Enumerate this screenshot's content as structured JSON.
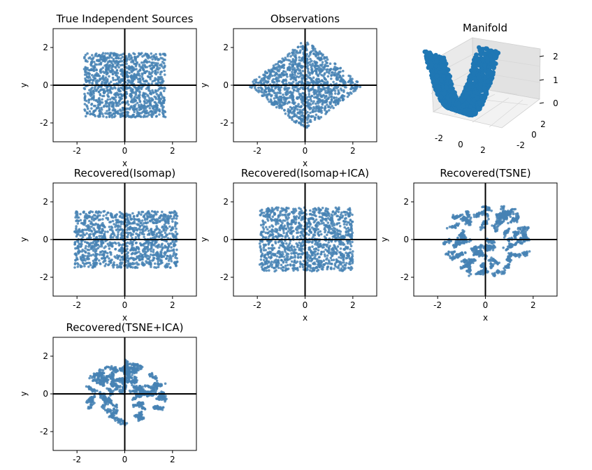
{
  "colors": {
    "point": "#4682b4",
    "point_3d": "#1f77b4",
    "axis_line": "#000000"
  },
  "chart_data": [
    {
      "type": "scatter",
      "title": "True Independent Sources",
      "xlabel": "x",
      "ylabel": "y",
      "xlim": [
        -3,
        3
      ],
      "ylim": [
        -3,
        3
      ],
      "xticks": [
        -2,
        0,
        2
      ],
      "yticks": [
        -2,
        0,
        2
      ],
      "zero_lines": true,
      "point_count": 1200,
      "distribution": {
        "shape": "rectangle",
        "x_range": [
          -1.7,
          1.7
        ],
        "y_range": [
          -1.7,
          1.7
        ]
      }
    },
    {
      "type": "scatter",
      "title": "Observations",
      "xlabel": "x",
      "ylabel": "y",
      "xlim": [
        -3,
        3
      ],
      "ylim": [
        -3,
        3
      ],
      "xticks": [
        -2,
        0,
        2
      ],
      "yticks": [
        -2,
        0,
        2
      ],
      "zero_lines": true,
      "point_count": 1200,
      "distribution": {
        "shape": "diamond",
        "x_range": [
          -2.4,
          2.4
        ],
        "y_range": [
          -2.4,
          2.4
        ]
      }
    },
    {
      "type": "scatter3d",
      "title": "Manifold",
      "xticks": [
        -2,
        0,
        2
      ],
      "yticks": [
        -2,
        0,
        2
      ],
      "zticks": [
        0,
        1,
        2
      ],
      "distribution": {
        "shape": "parabolic-sheet",
        "z_range": [
          0,
          2
        ]
      }
    },
    {
      "type": "scatter",
      "title": "Recovered(Isomap)",
      "xlabel": "x",
      "ylabel": "y",
      "xlim": [
        -3,
        3
      ],
      "ylim": [
        -3,
        3
      ],
      "xticks": [
        -2,
        0,
        2
      ],
      "yticks": [
        -2,
        0,
        2
      ],
      "zero_lines": true,
      "point_count": 1200,
      "distribution": {
        "shape": "rectangle",
        "x_range": [
          -2.1,
          2.2
        ],
        "y_range": [
          -1.5,
          1.5
        ]
      }
    },
    {
      "type": "scatter",
      "title": "Recovered(Isomap+ICA)",
      "xlabel": "x",
      "ylabel": "y",
      "xlim": [
        -3,
        3
      ],
      "ylim": [
        -3,
        3
      ],
      "xticks": [
        -2,
        0,
        2
      ],
      "yticks": [
        -2,
        0,
        2
      ],
      "zero_lines": true,
      "point_count": 1200,
      "distribution": {
        "shape": "rectangle",
        "x_range": [
          -1.9,
          2.0
        ],
        "y_range": [
          -1.7,
          1.7
        ]
      }
    },
    {
      "type": "scatter",
      "title": "Recovered(TSNE)",
      "xlabel": "x",
      "ylabel": "y",
      "xlim": [
        -3,
        3
      ],
      "ylim": [
        -3,
        3
      ],
      "xticks": [
        -2,
        0,
        2
      ],
      "yticks": [
        -2,
        0,
        2
      ],
      "zero_lines": true,
      "point_count": 1200,
      "distribution": {
        "shape": "clustered-disk",
        "center": [
          0,
          0
        ],
        "radius": 2.0
      }
    },
    {
      "type": "scatter",
      "title": "Recovered(TSNE+ICA)",
      "xlabel": "x",
      "ylabel": "y",
      "xlim": [
        -3,
        3
      ],
      "ylim": [
        -3,
        3
      ],
      "xticks": [
        -2,
        0,
        2
      ],
      "yticks": [
        -2,
        0,
        2
      ],
      "zero_lines": true,
      "point_count": 1200,
      "distribution": {
        "shape": "clustered-disk",
        "center": [
          0,
          0
        ],
        "radius": 1.75
      }
    }
  ]
}
